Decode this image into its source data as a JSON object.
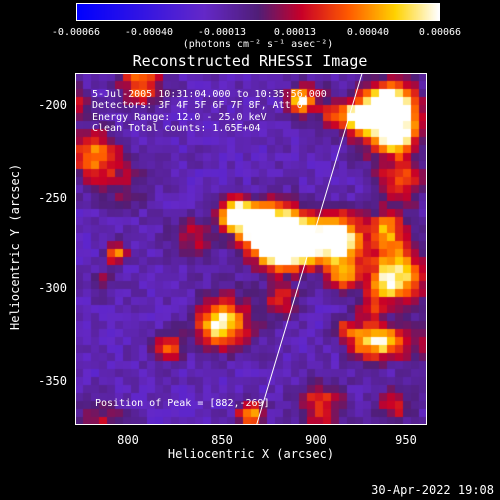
{
  "colorbar": {
    "ticks": [
      "-0.00066",
      "-0.00040",
      "-0.00013",
      "0.00013",
      "0.00040",
      "0.00066"
    ],
    "unit": "(photons cm⁻² s⁻¹ asec⁻²)"
  },
  "chart_data": {
    "type": "heatmap",
    "title": "Reconstructed RHESSI Image",
    "xlabel": "Heliocentric X (arcsec)",
    "ylabel": "Heliocentric Y (arcsec)",
    "xlim": [
      770,
      960
    ],
    "ylim": [
      -373,
      -178
    ],
    "xticks": [
      "800",
      "850",
      "900",
      "950"
    ],
    "yticks": [
      "-200",
      "-250",
      "-300",
      "-350"
    ],
    "color_range": [
      -0.00066,
      0.00066
    ],
    "colormap": "blue-purple-red-yellow-white",
    "annotations": {
      "time_range": "5-Jul-2005 10:31:04.000 to 10:35:56.000",
      "detectors": "Detectors: 3F 4F 5F 6F 7F 8F, Att 0",
      "energy": "Energy Range: 12.0 - 25.0 keV",
      "clean": "Clean    Total counts: 1.65E+04",
      "peak": "Position of Peak = [882,-269]"
    },
    "limb_line": {
      "points": [
        [
          868,
          -373
        ],
        [
          925,
          -178
        ]
      ],
      "color": "#ffffff"
    },
    "peak_position": [
      882,
      -269
    ]
  },
  "footer": {
    "date": "30-Apr-2022 19:08"
  }
}
